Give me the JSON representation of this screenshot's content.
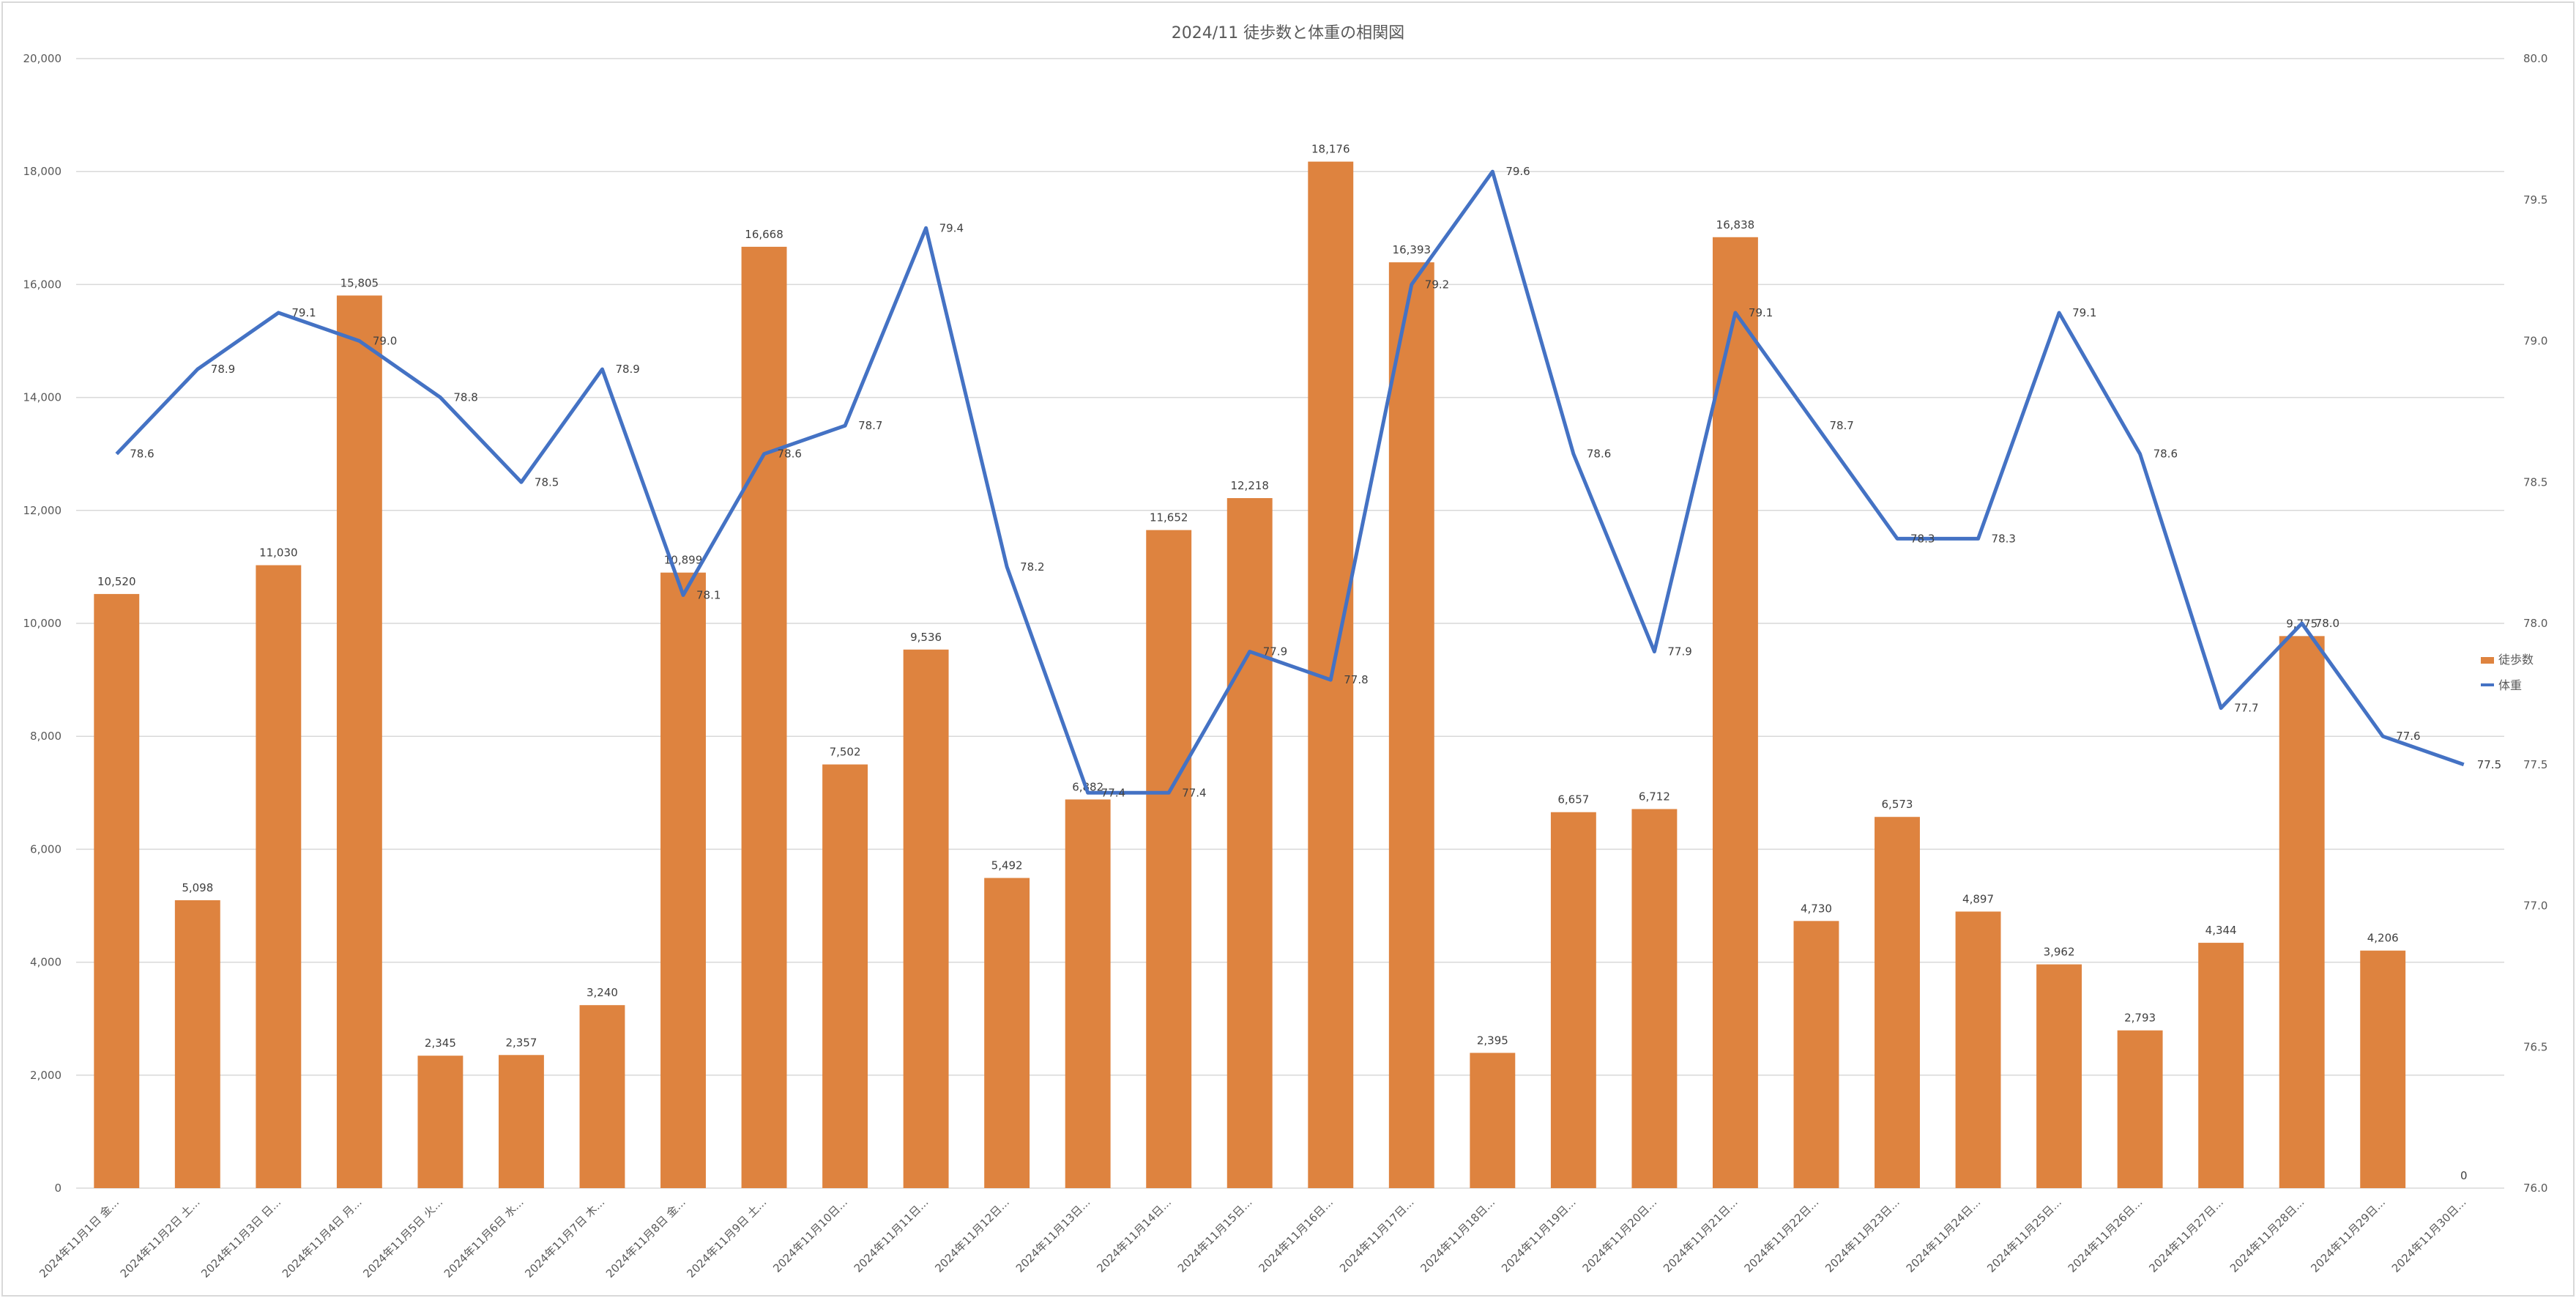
{
  "chart_data": {
    "type": "bar+line",
    "title": "2024/11 徒歩数と体重の相関図",
    "categories": [
      "2024年11月1日 金...",
      "2024年11月2日 土...",
      "2024年11月3日 日...",
      "2024年11月4日 月...",
      "2024年11月5日 火...",
      "2024年11月6日 水...",
      "2024年11月7日 木...",
      "2024年11月8日 金...",
      "2024年11月9日 土...",
      "2024年11月10日...",
      "2024年11月11日...",
      "2024年11月12日...",
      "2024年11月13日...",
      "2024年11月14日...",
      "2024年11月15日...",
      "2024年11月16日...",
      "2024年11月17日...",
      "2024年11月18日...",
      "2024年11月19日...",
      "2024年11月20日...",
      "2024年11月21日...",
      "2024年11月22日...",
      "2024年11月23日...",
      "2024年11月24日...",
      "2024年11月25日...",
      "2024年11月26日...",
      "2024年11月27日...",
      "2024年11月28日...",
      "2024年11月29日...",
      "2024年11月30日..."
    ],
    "series": [
      {
        "name": "徒歩数",
        "type": "bar",
        "axis": "left",
        "color": "#de833f",
        "values": [
          10520,
          5098,
          11030,
          15805,
          2345,
          2357,
          3240,
          10899,
          16668,
          7502,
          9536,
          5492,
          6882,
          11652,
          12218,
          18176,
          16393,
          2395,
          6657,
          6712,
          16838,
          4730,
          6573,
          4897,
          3962,
          2793,
          4344,
          9775,
          4206,
          0
        ]
      },
      {
        "name": "体重",
        "type": "line",
        "axis": "right",
        "color": "#4472c4",
        "values": [
          78.6,
          78.9,
          79.1,
          79.0,
          78.8,
          78.5,
          78.9,
          78.1,
          78.6,
          78.7,
          79.4,
          78.2,
          77.4,
          77.4,
          77.9,
          77.8,
          79.2,
          79.6,
          78.6,
          77.9,
          79.1,
          78.7,
          78.3,
          78.3,
          79.1,
          78.6,
          77.7,
          78.0,
          77.6,
          77.5
        ]
      }
    ],
    "y_left": {
      "min": 0,
      "max": 20000,
      "ticks": [
        "0",
        "2,000",
        "4,000",
        "6,000",
        "8,000",
        "10,000",
        "12,000",
        "14,000",
        "16,000",
        "18,000",
        "20,000"
      ]
    },
    "y_right": {
      "min": 76.0,
      "max": 80.0,
      "ticks": [
        "76.0",
        "76.5",
        "77.0",
        "77.5",
        "78.0",
        "78.5",
        "79.0",
        "79.5",
        "80.0"
      ]
    },
    "grid": true,
    "legend": "right"
  }
}
